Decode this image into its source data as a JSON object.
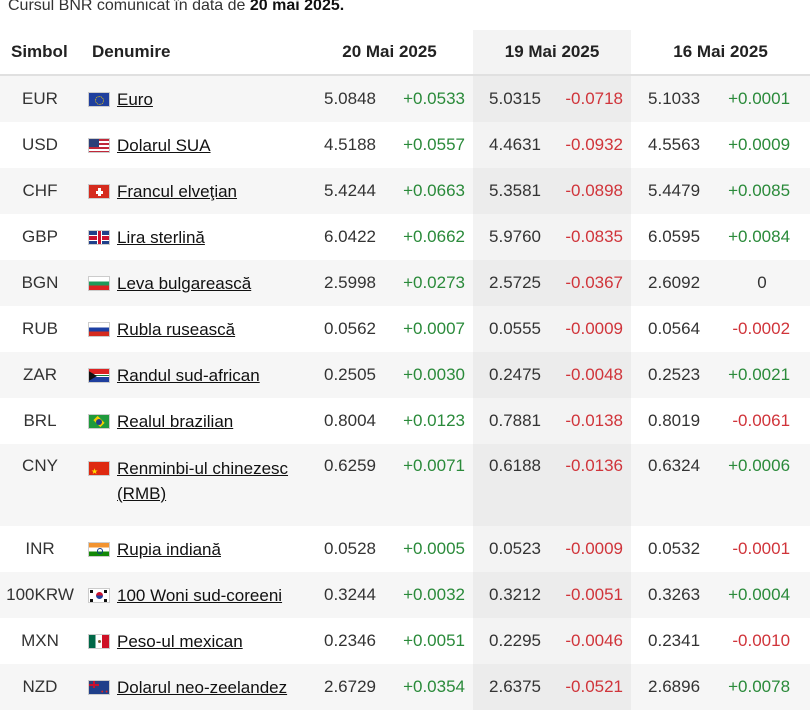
{
  "caption": {
    "text": "Cursul BNR comunicat în data de ",
    "date": "20 mai 2025."
  },
  "table": {
    "headers": {
      "symbol": "Simbol",
      "name": "Denumire",
      "date1": "20 Mai 2025",
      "date2": "19 Mai 2025",
      "date3": "16 Mai 2025"
    },
    "rows": [
      {
        "symbol": "EUR",
        "flag": "eu-flag-icon",
        "name": "Euro",
        "v1": "5.0848",
        "d1": "+0.0533",
        "v2": "5.0315",
        "d2": "-0.0718",
        "v3": "5.1033",
        "d3": "+0.0001"
      },
      {
        "symbol": "USD",
        "flag": "us-flag-icon",
        "name": "Dolarul SUA",
        "v1": "4.5188",
        "d1": "+0.0557",
        "v2": "4.4631",
        "d2": "-0.0932",
        "v3": "4.5563",
        "d3": "+0.0009"
      },
      {
        "symbol": "CHF",
        "flag": "ch-flag-icon",
        "name": "Francul elveţian",
        "v1": "5.4244",
        "d1": "+0.0663",
        "v2": "5.3581",
        "d2": "-0.0898",
        "v3": "5.4479",
        "d3": "+0.0085"
      },
      {
        "symbol": "GBP",
        "flag": "gb-flag-icon",
        "name": "Lira sterlină",
        "v1": "6.0422",
        "d1": "+0.0662",
        "v2": "5.9760",
        "d2": "-0.0835",
        "v3": "6.0595",
        "d3": "+0.0084"
      },
      {
        "symbol": "BGN",
        "flag": "bg-flag-icon",
        "name": "Leva bulgarească",
        "v1": "2.5998",
        "d1": "+0.0273",
        "v2": "2.5725",
        "d2": "-0.0367",
        "v3": "2.6092",
        "d3": "0"
      },
      {
        "symbol": "RUB",
        "flag": "ru-flag-icon",
        "name": "Rubla rusească",
        "v1": "0.0562",
        "d1": "+0.0007",
        "v2": "0.0555",
        "d2": "-0.0009",
        "v3": "0.0564",
        "d3": "-0.0002"
      },
      {
        "symbol": "ZAR",
        "flag": "za-flag-icon",
        "name": "Randul sud-african",
        "v1": "0.2505",
        "d1": "+0.0030",
        "v2": "0.2475",
        "d2": "-0.0048",
        "v3": "0.2523",
        "d3": "+0.0021"
      },
      {
        "symbol": "BRL",
        "flag": "br-flag-icon",
        "name": "Realul brazilian",
        "v1": "0.8004",
        "d1": "+0.0123",
        "v2": "0.7881",
        "d2": "-0.0138",
        "v3": "0.8019",
        "d3": "-0.0061"
      },
      {
        "symbol": "CNY",
        "flag": "cn-flag-icon",
        "name": "Renminbi-ul chinezesc (RMB)",
        "v1": "0.6259",
        "d1": "+0.0071",
        "v2": "0.6188",
        "d2": "-0.0136",
        "v3": "0.6324",
        "d3": "+0.0006"
      },
      {
        "symbol": "INR",
        "flag": "in-flag-icon",
        "name": "Rupia indiană",
        "v1": "0.0528",
        "d1": "+0.0005",
        "v2": "0.0523",
        "d2": "-0.0009",
        "v3": "0.0532",
        "d3": "-0.0001"
      },
      {
        "symbol": "100KRW",
        "flag": "kr-flag-icon",
        "name": "100 Woni sud-coreeni",
        "v1": "0.3244",
        "d1": "+0.0032",
        "v2": "0.3212",
        "d2": "-0.0051",
        "v3": "0.3263",
        "d3": "+0.0004"
      },
      {
        "symbol": "MXN",
        "flag": "mx-flag-icon",
        "name": "Peso-ul mexican",
        "v1": "0.2346",
        "d1": "+0.0051",
        "v2": "0.2295",
        "d2": "-0.0046",
        "v3": "0.2341",
        "d3": "-0.0010"
      },
      {
        "symbol": "NZD",
        "flag": "nz-flag-icon",
        "name": "Dolarul neo-zeelandez",
        "v1": "2.6729",
        "d1": "+0.0354",
        "v2": "2.6375",
        "d2": "-0.0521",
        "v3": "2.6896",
        "d3": "+0.0078"
      }
    ]
  },
  "colors": {
    "positive": "#2a8a3a",
    "negative": "#d0343a",
    "highlight_column": "#f3f3f3"
  }
}
